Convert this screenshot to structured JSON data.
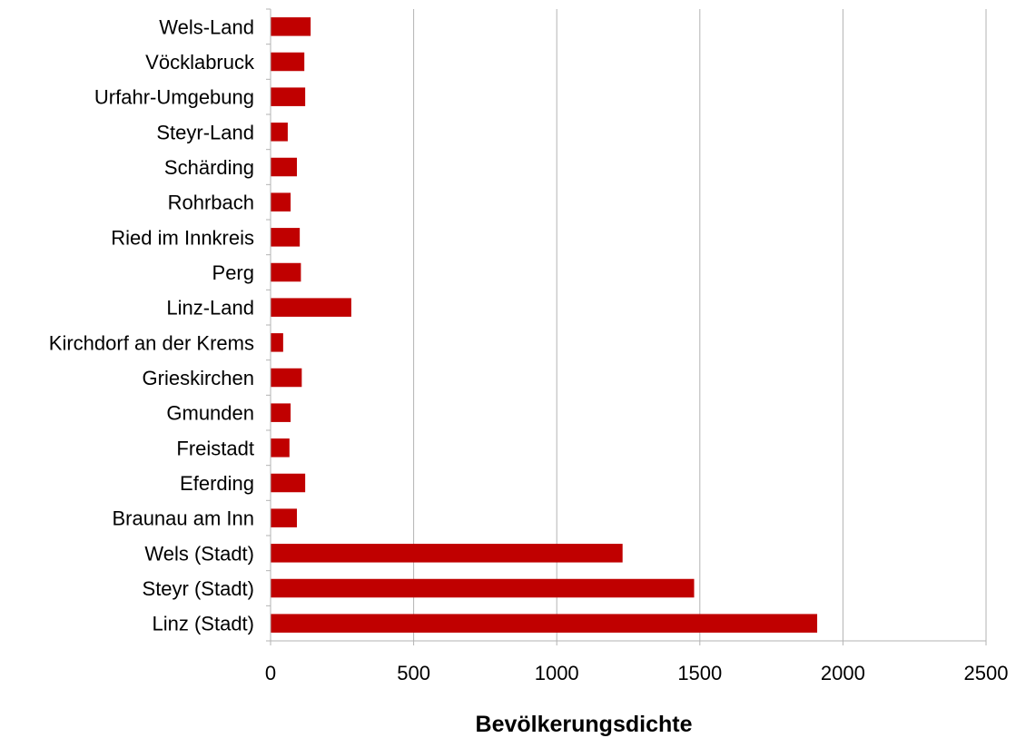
{
  "chart_data": {
    "type": "bar",
    "orientation": "horizontal",
    "categories": [
      "Wels-Land",
      "Vöcklabruck",
      "Urfahr-Umgebung",
      "Steyr-Land",
      "Schärding",
      "Rohrbach",
      "Ried im Innkreis",
      "Perg",
      "Linz-Land",
      "Kirchdorf an der Krems",
      "Grieskirchen",
      "Gmunden",
      "Freistadt",
      "Eferding",
      "Braunau am Inn",
      "Wels (Stadt)",
      "Steyr (Stadt)",
      "Linz (Stadt)"
    ],
    "values": [
      140,
      118,
      121,
      60,
      92,
      70,
      102,
      106,
      282,
      44,
      109,
      70,
      66,
      121,
      92,
      1230,
      1480,
      1910
    ],
    "xlabel": "Bevölkerungsdichte",
    "ylabel": "",
    "xlim": [
      0,
      2500
    ],
    "xticks": [
      "0",
      "500",
      "1000",
      "1500",
      "2000",
      "2500"
    ],
    "grid": "vertical",
    "legend": "none",
    "bar_color": "#c00000",
    "grid_color": "#b3b3b3",
    "axis_color": "#b3b3b3"
  }
}
